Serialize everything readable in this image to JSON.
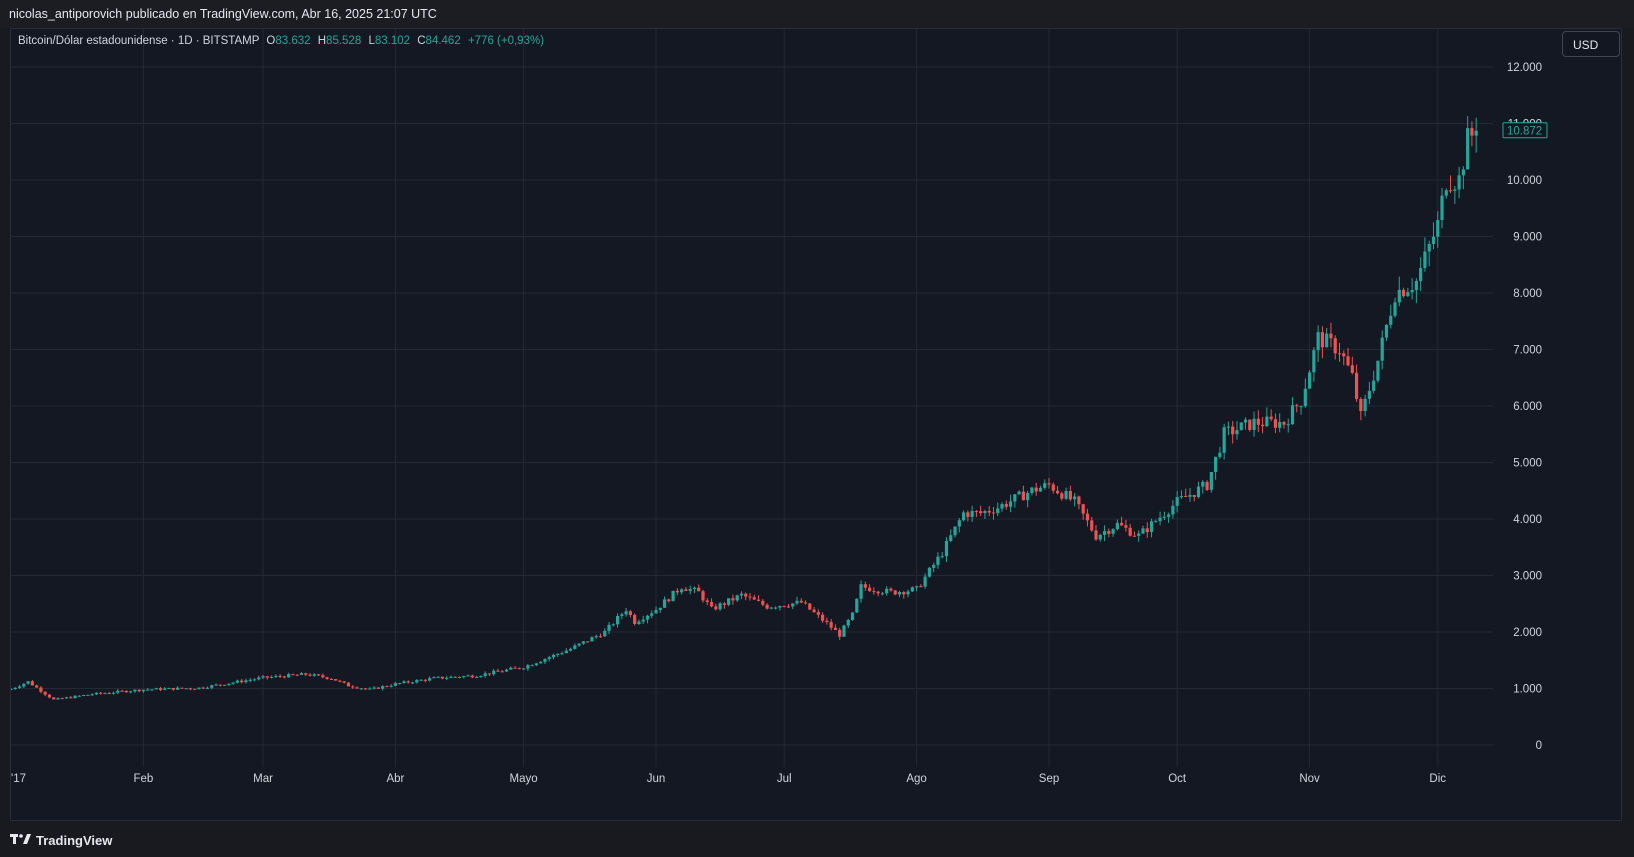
{
  "header": {
    "publisher": "nicolas_antiporovich publicado en TradingView.com, Abr 16, 2025 21:07 UTC"
  },
  "legend": {
    "symbol": "Bitcoin/Dólar estadounidense · 1D · BITSTAMP",
    "open_label": "O",
    "open": "83.632",
    "high_label": "H",
    "high": "85.528",
    "low_label": "L",
    "low": "83.102",
    "close_label": "C",
    "close": "84.462",
    "change": "+776 (+0,93%)"
  },
  "currency_button": "USD",
  "last_price": "10.872",
  "footer": {
    "brand": "TradingView"
  },
  "colors": {
    "up": "#26a69a",
    "down": "#ef5350",
    "background": "#141823",
    "grid": "#242936"
  },
  "chart_data": {
    "type": "candlestick",
    "period": "1D",
    "y_axis": {
      "ticks": [
        0,
        1000,
        2000,
        3000,
        4000,
        5000,
        6000,
        7000,
        8000,
        9000,
        10000,
        11000,
        12000
      ],
      "tick_labels": [
        "0",
        "1.000",
        "2.000",
        "3.000",
        "4.000",
        "5.000",
        "6.000",
        "7.000",
        "8.000",
        "9.000",
        "10.000",
        "11.000",
        "12.000"
      ],
      "range": [
        0,
        12000
      ]
    },
    "x_axis": {
      "range_day_of_year": [
        1,
        347
      ],
      "ticks": [
        {
          "label": "'17",
          "day": 1
        },
        {
          "label": "Feb",
          "day": 32
        },
        {
          "label": "Mar",
          "day": 60
        },
        {
          "label": "Abr",
          "day": 91
        },
        {
          "label": "Mayo",
          "day": 121
        },
        {
          "label": "Jun",
          "day": 152
        },
        {
          "label": "Jul",
          "day": 182
        },
        {
          "label": "Ago",
          "day": 213
        },
        {
          "label": "Sep",
          "day": 244
        },
        {
          "label": "Oct",
          "day": 274
        },
        {
          "label": "Nov",
          "day": 305
        },
        {
          "label": "Dic",
          "day": 335
        }
      ]
    },
    "close_anchors": [
      {
        "day": 1,
        "close": 990
      },
      {
        "day": 5,
        "close": 1120
      },
      {
        "day": 11,
        "close": 800
      },
      {
        "day": 20,
        "close": 900
      },
      {
        "day": 32,
        "close": 980
      },
      {
        "day": 45,
        "close": 1010
      },
      {
        "day": 60,
        "close": 1190
      },
      {
        "day": 70,
        "close": 1250
      },
      {
        "day": 76,
        "close": 1180
      },
      {
        "day": 80,
        "close": 1050
      },
      {
        "day": 85,
        "close": 980
      },
      {
        "day": 91,
        "close": 1080
      },
      {
        "day": 100,
        "close": 1180
      },
      {
        "day": 110,
        "close": 1230
      },
      {
        "day": 121,
        "close": 1380
      },
      {
        "day": 132,
        "close": 1700
      },
      {
        "day": 140,
        "close": 2000
      },
      {
        "day": 145,
        "close": 2400
      },
      {
        "day": 147,
        "close": 2180
      },
      {
        "day": 152,
        "close": 2400
      },
      {
        "day": 158,
        "close": 2800
      },
      {
        "day": 162,
        "close": 2700
      },
      {
        "day": 165,
        "close": 2400
      },
      {
        "day": 172,
        "close": 2650
      },
      {
        "day": 178,
        "close": 2450
      },
      {
        "day": 186,
        "close": 2520
      },
      {
        "day": 192,
        "close": 2150
      },
      {
        "day": 195,
        "close": 1950
      },
      {
        "day": 198,
        "close": 2300
      },
      {
        "day": 200,
        "close": 2800
      },
      {
        "day": 207,
        "close": 2700
      },
      {
        "day": 213,
        "close": 2750
      },
      {
        "day": 219,
        "close": 3400
      },
      {
        "day": 224,
        "close": 4100
      },
      {
        "day": 228,
        "close": 4100
      },
      {
        "day": 232,
        "close": 4200
      },
      {
        "day": 240,
        "close": 4500
      },
      {
        "day": 244,
        "close": 4600
      },
      {
        "day": 250,
        "close": 4300
      },
      {
        "day": 255,
        "close": 3700
      },
      {
        "day": 260,
        "close": 3900
      },
      {
        "day": 265,
        "close": 3700
      },
      {
        "day": 274,
        "close": 4300
      },
      {
        "day": 281,
        "close": 4600
      },
      {
        "day": 285,
        "close": 5500
      },
      {
        "day": 292,
        "close": 5700
      },
      {
        "day": 299,
        "close": 5700
      },
      {
        "day": 303,
        "close": 6100
      },
      {
        "day": 307,
        "close": 7200
      },
      {
        "day": 312,
        "close": 7000
      },
      {
        "day": 315,
        "close": 6500
      },
      {
        "day": 317,
        "close": 5800
      },
      {
        "day": 321,
        "close": 6800
      },
      {
        "day": 325,
        "close": 8000
      },
      {
        "day": 330,
        "close": 8200
      },
      {
        "day": 335,
        "close": 9200
      },
      {
        "day": 337,
        "close": 10000
      },
      {
        "day": 340,
        "close": 10000
      },
      {
        "day": 342,
        "close": 10700
      },
      {
        "day": 344,
        "close": 10872
      }
    ],
    "last": {
      "day": 344,
      "close": 10872
    }
  }
}
